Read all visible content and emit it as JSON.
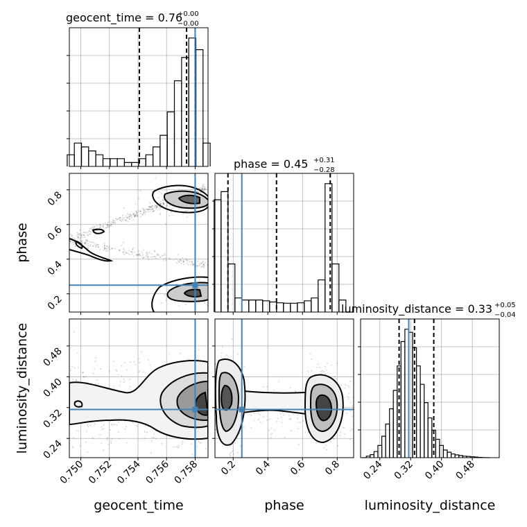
{
  "chart_data": {
    "type": "corner",
    "parameters": [
      "geocent_time",
      "phase",
      "luminosity_distance"
    ],
    "truths": {
      "geocent_time": 0.758,
      "phase": 0.25,
      "luminosity_distance": 0.315
    },
    "truth_color": "#4682b4",
    "titles": [
      {
        "param": "geocent_time",
        "main": "geocent_time = 0.76",
        "plus": "+0.00",
        "minus": "−0.00"
      },
      {
        "param": "phase",
        "main": "phase = 0.45",
        "plus": "+0.31",
        "minus": "−0.28"
      },
      {
        "param": "luminosity_distance",
        "main": "luminosity_distance = 0.33",
        "plus": "+0.05",
        "minus": "−0.04"
      }
    ],
    "axes": {
      "geocent_time": {
        "label": "geocent_time",
        "range": [
          0.7492,
          0.7589
        ],
        "ticks": [
          0.75,
          0.752,
          0.754,
          0.756,
          0.758
        ],
        "tick_labels": [
          "0.750",
          "0.752",
          "0.754",
          "0.756",
          "0.758"
        ]
      },
      "phase": {
        "label": "phase",
        "range": [
          0.095,
          0.895
        ],
        "ticks": [
          0.2,
          0.4,
          0.6,
          0.8
        ],
        "tick_labels": [
          "0.2",
          "0.4",
          "0.6",
          "0.8"
        ]
      },
      "luminosity_distance": {
        "label": "luminosity_distance",
        "range": [
          0.19,
          0.55
        ],
        "ticks": [
          0.24,
          0.32,
          0.4,
          0.48
        ],
        "tick_labels": [
          "0.24",
          "0.32",
          "0.40",
          "0.48"
        ]
      }
    },
    "histograms": {
      "geocent_time": {
        "x": [
          0.7493,
          0.7498,
          0.7503,
          0.7508,
          0.7513,
          0.7518,
          0.7523,
          0.7528,
          0.7533,
          0.7538,
          0.7543,
          0.7548,
          0.7553,
          0.7558,
          0.7563,
          0.7568,
          0.7573,
          0.7578,
          0.7583,
          0.7588
        ],
        "counts": [
          3,
          6,
          5,
          4,
          3,
          2,
          2,
          2,
          1,
          1,
          2,
          3,
          5,
          8,
          14,
          22,
          28,
          33,
          30,
          6
        ],
        "quantiles": [
          0.7541,
          0.7574,
          0.758
        ]
      },
      "phase": {
        "x": [
          0.11,
          0.15,
          0.19,
          0.23,
          0.27,
          0.31,
          0.35,
          0.39,
          0.43,
          0.47,
          0.51,
          0.55,
          0.59,
          0.63,
          0.67,
          0.71,
          0.75,
          0.79,
          0.83,
          0.87
        ],
        "counts": [
          28,
          30,
          12,
          3.5,
          3,
          3,
          3,
          2.8,
          2.5,
          2.3,
          2.2,
          2.2,
          2.3,
          2.8,
          3.5,
          8,
          32,
          12,
          3,
          0
        ],
        "quantiles": [
          0.17,
          0.45,
          0.76
        ]
      },
      "luminosity_distance": {
        "x": [
          0.2,
          0.21,
          0.22,
          0.23,
          0.24,
          0.25,
          0.26,
          0.27,
          0.28,
          0.29,
          0.3,
          0.31,
          0.32,
          0.33,
          0.34,
          0.35,
          0.36,
          0.37,
          0.38,
          0.39,
          0.4,
          0.41,
          0.42,
          0.43,
          0.44,
          0.45,
          0.46,
          0.47,
          0.48,
          0.49,
          0.5,
          0.51,
          0.52
        ],
        "counts": [
          0,
          0.5,
          1,
          2,
          4,
          7,
          11,
          16,
          22,
          30,
          38,
          42,
          41,
          36,
          30,
          24,
          18,
          13,
          9,
          6,
          4,
          2.5,
          1.8,
          1.2,
          0.9,
          0.7,
          0.5,
          0.4,
          0.3,
          0.2,
          0.1,
          0.05,
          0
        ],
        "quantiles": [
          0.29,
          0.33,
          0.38
        ]
      }
    },
    "contour_levels": [
      "0.5-sigma",
      "1-sigma",
      "1.5-sigma",
      "2-sigma"
    ],
    "grid": true
  }
}
